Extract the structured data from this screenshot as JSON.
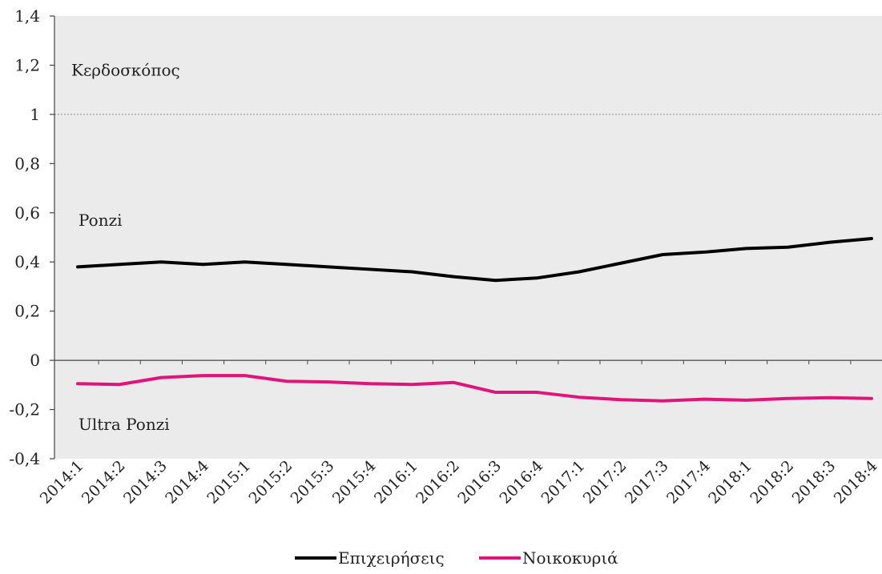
{
  "chart_data": {
    "type": "line",
    "categories": [
      "2014:1",
      "2014:2",
      "2014:3",
      "2014:4",
      "2015:1",
      "2015:2",
      "2015:3",
      "2015:4",
      "2016:1",
      "2016:2",
      "2016:3",
      "2016:4",
      "2017:1",
      "2017:2",
      "2017:3",
      "2017:4",
      "2018:1",
      "2018:2",
      "2018:3",
      "2018:4"
    ],
    "series": [
      {
        "name": "Επιχειρήσεις",
        "color": "#000000",
        "values": [
          0.38,
          0.39,
          0.4,
          0.39,
          0.4,
          0.39,
          0.38,
          0.37,
          0.36,
          0.34,
          0.325,
          0.335,
          0.36,
          0.395,
          0.43,
          0.44,
          0.455,
          0.46,
          0.48,
          0.495
        ]
      },
      {
        "name": "Νοικοκυριά",
        "color": "#e0147a",
        "values": [
          -0.095,
          -0.098,
          -0.07,
          -0.062,
          -0.062,
          -0.085,
          -0.088,
          -0.095,
          -0.098,
          -0.09,
          -0.13,
          -0.13,
          -0.15,
          -0.16,
          -0.165,
          -0.158,
          -0.162,
          -0.155,
          -0.152,
          -0.155
        ]
      }
    ],
    "y_ticks": [
      "1,4",
      "1,2",
      "1",
      "0,8",
      "0,6",
      "0,4",
      "0,2",
      "0",
      "-0,2",
      "-0,4"
    ],
    "ylim": [
      -0.4,
      1.4
    ],
    "reference_line": 1,
    "annotations": [
      {
        "text": "Κερδοσκόπος",
        "y": 1.18
      },
      {
        "text": "Ponzi",
        "y": 0.57
      },
      {
        "text": "Ultra Ponzi",
        "y": -0.26
      }
    ],
    "plot_background": "#ebebeb",
    "legend_position": "bottom-center"
  }
}
